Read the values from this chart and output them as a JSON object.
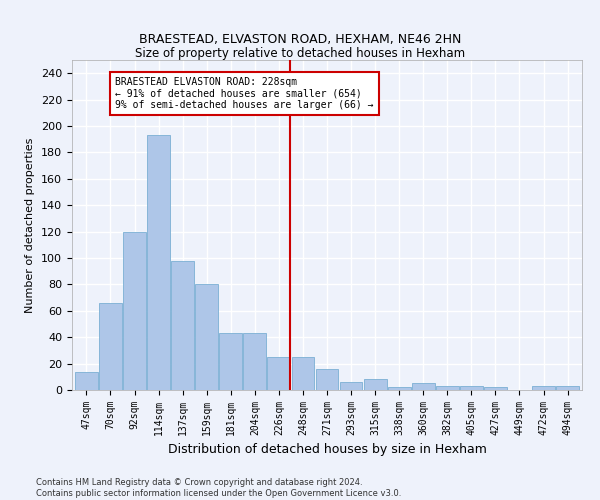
{
  "title": "BRAESTEAD, ELVASTON ROAD, HEXHAM, NE46 2HN",
  "subtitle": "Size of property relative to detached houses in Hexham",
  "xlabel": "Distribution of detached houses by size in Hexham",
  "ylabel": "Number of detached properties",
  "categories": [
    "47sqm",
    "70sqm",
    "92sqm",
    "114sqm",
    "137sqm",
    "159sqm",
    "181sqm",
    "204sqm",
    "226sqm",
    "248sqm",
    "271sqm",
    "293sqm",
    "315sqm",
    "338sqm",
    "360sqm",
    "382sqm",
    "405sqm",
    "427sqm",
    "449sqm",
    "472sqm",
    "494sqm"
  ],
  "values": [
    14,
    66,
    120,
    193,
    98,
    80,
    43,
    43,
    25,
    25,
    16,
    6,
    8,
    2,
    5,
    3,
    3,
    2,
    0,
    3,
    3
  ],
  "bar_color": "#aec6e8",
  "bar_edge_color": "#7bafd4",
  "vline_color": "#cc0000",
  "annotation_text": "BRAESTEAD ELVASTON ROAD: 228sqm\n← 91% of detached houses are smaller (654)\n9% of semi-detached houses are larger (66) →",
  "annotation_box_color": "#ffffff",
  "annotation_box_edge_color": "#cc0000",
  "background_color": "#eef2fb",
  "grid_color": "#ffffff",
  "ylim": [
    0,
    250
  ],
  "yticks": [
    0,
    20,
    40,
    60,
    80,
    100,
    120,
    140,
    160,
    180,
    200,
    220,
    240
  ],
  "footer_line1": "Contains HM Land Registry data © Crown copyright and database right 2024.",
  "footer_line2": "Contains public sector information licensed under the Open Government Licence v3.0."
}
